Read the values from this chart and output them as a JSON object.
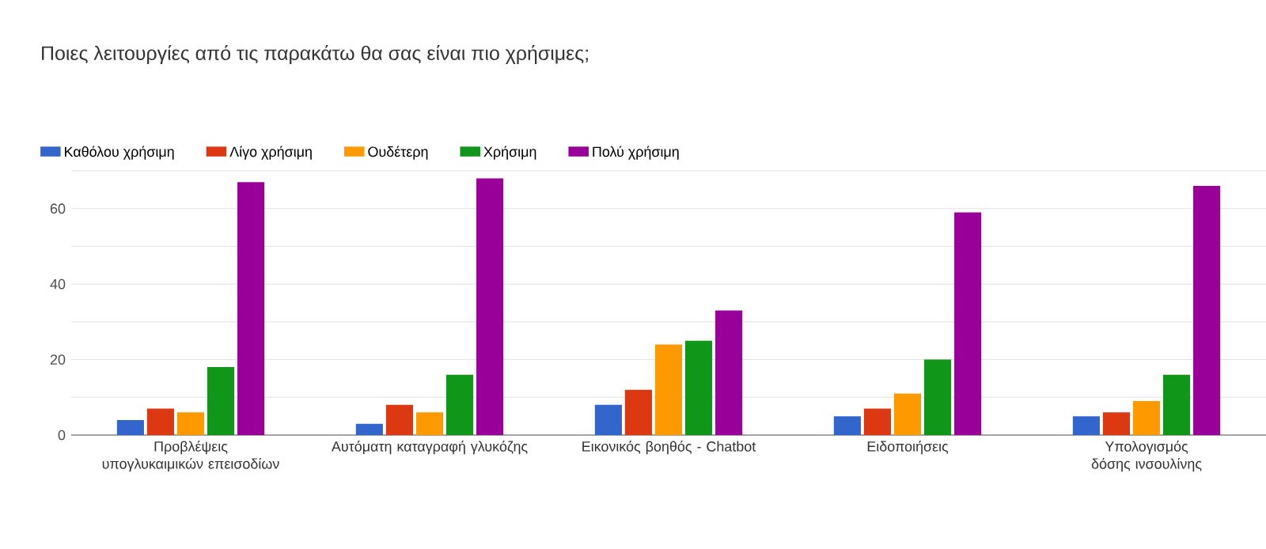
{
  "chart_data": {
    "type": "bar",
    "title": "Ποιες λειτουργίες από τις παρακάτω θα σας είναι πιο χρήσιμες;",
    "categories": [
      "Προβλέψεις υπογλυκαιμικών επεισοδίων",
      "Αυτόματη καταγραφή γλυκόζης",
      "Εικονικός βοηθός - Chatbot",
      "Ειδοποιήσεις",
      "Υπολογισμός δόσης ινσουλίνης"
    ],
    "series": [
      {
        "name": "Καθόλου χρήσιμη",
        "color": "#3366cc",
        "values": [
          4,
          3,
          8,
          5,
          5
        ]
      },
      {
        "name": "Λίγο χρήσιμη",
        "color": "#dc3912",
        "values": [
          7,
          8,
          12,
          7,
          6
        ]
      },
      {
        "name": "Ουδέτερη",
        "color": "#ff9900",
        "values": [
          6,
          6,
          24,
          11,
          9
        ]
      },
      {
        "name": "Χρήσιμη",
        "color": "#109618",
        "values": [
          18,
          16,
          25,
          20,
          16
        ]
      },
      {
        "name": "Πολύ χρήσιμη",
        "color": "#990099",
        "values": [
          67,
          68,
          33,
          59,
          66
        ]
      }
    ],
    "ylim": [
      0,
      70
    ],
    "yticks": [
      0,
      {
        "value": 10,
        "label": null
      },
      20,
      {
        "value": 30,
        "label": null
      },
      40,
      {
        "value": 50,
        "label": null
      },
      60,
      {
        "value": 70,
        "label": null
      }
    ],
    "grid": "y",
    "legend": "top left"
  }
}
